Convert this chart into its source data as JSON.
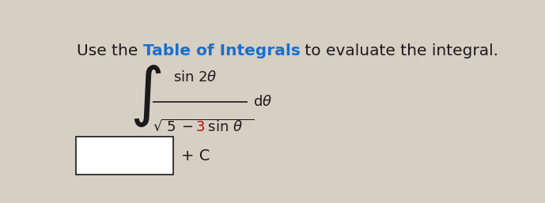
{
  "title_plain": "Use the ",
  "title_link": "Table of Integrals",
  "title_end": " to evaluate the integral.",
  "title_color_plain": "#1a1a1a",
  "title_color_link": "#1a6fcc",
  "title_fontsize": 14.5,
  "bg_color": "#d6cfc4",
  "math_color": "#1a1a1a",
  "highlight_color": "#cc0000",
  "answer_box_color": "#ffffff",
  "plus_c": "+ C",
  "fig_width": 6.89,
  "fig_height": 2.57
}
